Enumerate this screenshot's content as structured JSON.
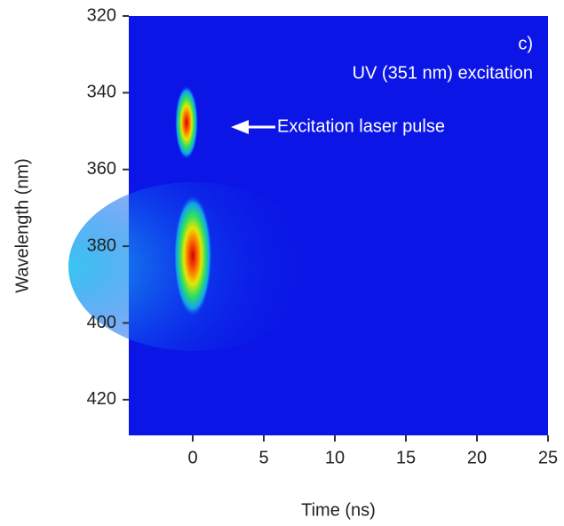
{
  "chart_data": {
    "type": "heatmap",
    "x_label": "Time (ns)",
    "y_label": "Wavelength (nm)",
    "xlim": [
      -4.5,
      25
    ],
    "xticks": [
      0,
      5,
      10,
      15,
      20,
      25
    ],
    "ylim": [
      320,
      429.3
    ],
    "yticks": [
      320,
      340,
      360,
      380,
      400,
      420
    ],
    "y_inverted": true,
    "background": "#0b16e6",
    "annotations": [
      "c)",
      "UV (351 nm) excitation",
      "Excitation laser pulse"
    ]
  }
}
